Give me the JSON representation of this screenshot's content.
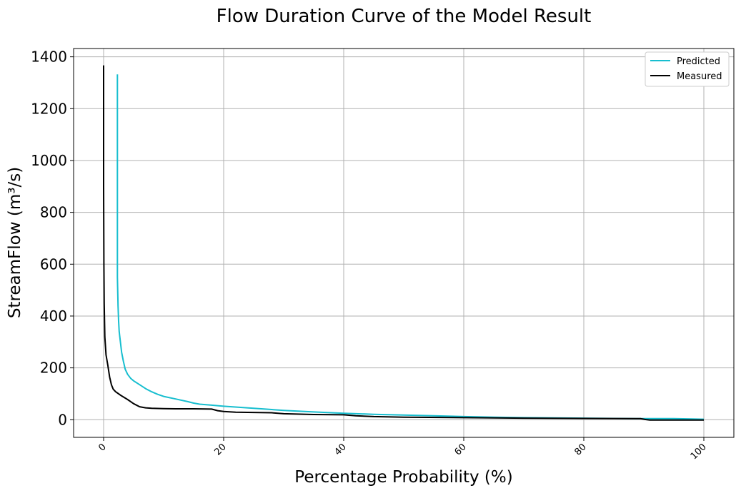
{
  "chart_data": {
    "type": "line",
    "title": "Flow Duration Curve of the Model Result",
    "xlabel": "Percentage Probability (%)",
    "ylabel": "StreamFlow (m³/s)",
    "xlim": [
      -5,
      105
    ],
    "ylim": [
      -68,
      1432
    ],
    "xticks": [
      "0",
      "20",
      "40",
      "60",
      "80",
      "100"
    ],
    "xtick_values": [
      0,
      20,
      40,
      60,
      80,
      100
    ],
    "yticks": [
      "0",
      "200",
      "400",
      "600",
      "800",
      "1000",
      "1200",
      "1400"
    ],
    "ytick_values": [
      0,
      200,
      400,
      600,
      800,
      1000,
      1200,
      1400
    ],
    "grid": true,
    "legend_position": "top-right",
    "series": [
      {
        "name": "Predicted",
        "color": "#17becf",
        "x": [
          2.3,
          2.3,
          2.3,
          2.4,
          2.5,
          2.6,
          2.8,
          3.0,
          3.3,
          3.6,
          4.0,
          4.5,
          5.0,
          6.0,
          7.0,
          8.0,
          9.0,
          10.0,
          12.0,
          14.0,
          15.0,
          16.0,
          18.0,
          20.0,
          25.0,
          30.0,
          35.0,
          40.0,
          45.0,
          50.0,
          55.0,
          60.0,
          65.0,
          70.0,
          75.0,
          80.0,
          85.0,
          90.0,
          95.0,
          98.0,
          100.0
        ],
        "y": [
          1332,
          800,
          550,
          440,
          380,
          340,
          300,
          260,
          225,
          195,
          175,
          160,
          150,
          135,
          120,
          108,
          98,
          90,
          80,
          70,
          64,
          60,
          56,
          52,
          44,
          36,
          30,
          25,
          21,
          18,
          15,
          12,
          10,
          8,
          7,
          6,
          5,
          4,
          4,
          3,
          2
        ]
      },
      {
        "name": "Measured",
        "color": "#000000",
        "x": [
          0.0,
          0.0,
          0.05,
          0.1,
          0.2,
          0.4,
          0.7,
          1.0,
          1.3,
          1.6,
          2.0,
          2.5,
          3.0,
          4.0,
          5.0,
          6.0,
          7.0,
          8.0,
          10.0,
          12.0,
          15.0,
          18.0,
          19.0,
          20.0,
          22.0,
          25.0,
          28.0,
          30.0,
          35.0,
          40.0,
          42.0,
          45.0,
          50.0,
          60.0,
          70.0,
          80.0,
          89.5,
          90.0,
          90.5,
          91.0,
          95.0,
          100.0
        ],
        "y": [
          1367,
          900,
          600,
          450,
          320,
          250,
          210,
          165,
          135,
          118,
          108,
          100,
          92,
          78,
          62,
          50,
          46,
          44,
          43,
          42,
          42,
          41,
          35,
          32,
          29,
          28,
          27,
          23,
          20,
          19,
          15,
          12,
          10,
          8,
          6,
          5,
          4,
          2,
          0,
          -1,
          -1,
          -1
        ]
      }
    ]
  }
}
